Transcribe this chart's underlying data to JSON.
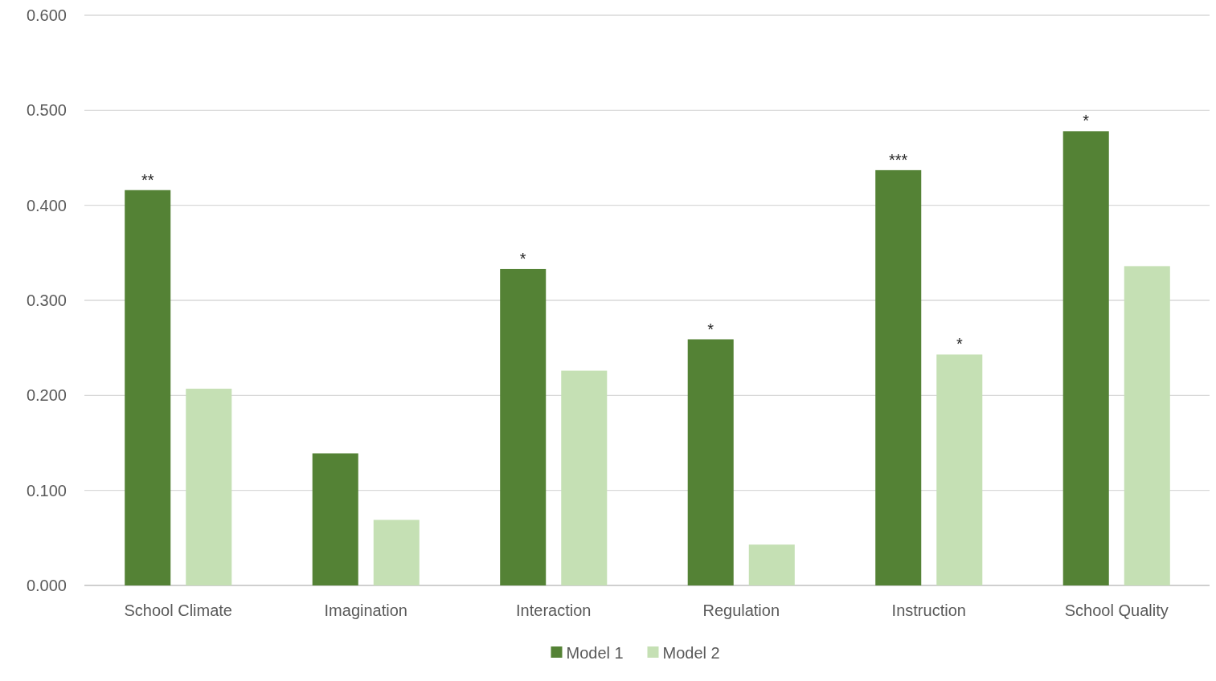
{
  "chart_data": {
    "type": "bar",
    "categories": [
      "School Climate",
      "Imagination",
      "Interaction",
      "Regulation",
      "Instruction",
      "School Quality"
    ],
    "series": [
      {
        "name": "Model 1",
        "color": "#548235",
        "values": [
          0.416,
          0.139,
          0.333,
          0.259,
          0.437,
          0.478
        ],
        "value_labels": [
          "**",
          null,
          "*",
          "*",
          "***",
          "*"
        ]
      },
      {
        "name": "Model 2",
        "color": "#c5e0b4",
        "values": [
          0.207,
          0.069,
          0.226,
          0.043,
          0.243,
          0.336
        ],
        "value_labels": [
          null,
          null,
          null,
          null,
          "*",
          null
        ]
      }
    ],
    "ylim": [
      0,
      0.6
    ],
    "yticks": [
      {
        "value": 0,
        "label": "0.000"
      },
      {
        "value": 0.1,
        "label": "0.100"
      },
      {
        "value": 0.2,
        "label": "0.200"
      },
      {
        "value": 0.3,
        "label": "0.300"
      },
      {
        "value": 0.4,
        "label": "0.400"
      },
      {
        "value": 0.5,
        "label": "0.500"
      },
      {
        "value": 0.6,
        "label": "0.600"
      }
    ],
    "grid": "y",
    "legend": "bottom"
  }
}
